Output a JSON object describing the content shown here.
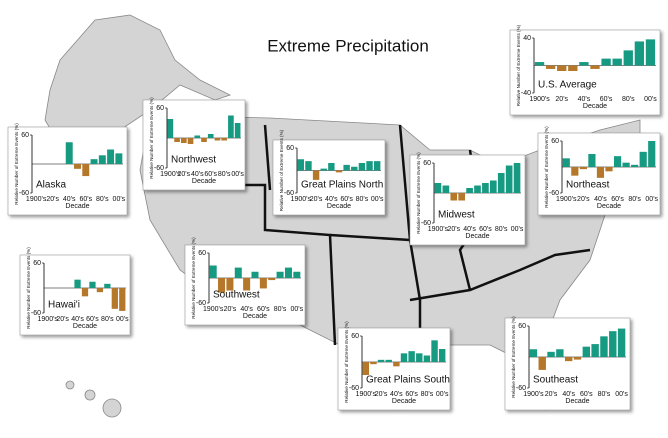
{
  "title": "Extreme Precipitation",
  "chart_data": [
    {
      "type": "bar",
      "title": "U.S. Average",
      "y_label": "Relative Number of Extreme Events (%)",
      "x_label": "Decade",
      "categories": [
        "1900's",
        null,
        "20's",
        null,
        "40's",
        null,
        "60's",
        null,
        "80's",
        null,
        "00's"
      ],
      "values": [
        5,
        -5,
        -8,
        -8,
        5,
        -5,
        10,
        10,
        22,
        35,
        38
      ],
      "ylim": [
        -40,
        40
      ],
      "yticks": [
        -40,
        40
      ],
      "color": "#179a82",
      "negative_color": "#b5772a"
    },
    {
      "type": "bar",
      "title": "Northwest",
      "y_label": "Relative Number of Extreme Events (%)",
      "x_label": "Decade",
      "categories": [
        "1900's",
        null,
        "20's",
        null,
        "40's",
        null,
        "60's",
        null,
        "80's",
        null,
        "00's"
      ],
      "values": [
        38,
        -8,
        -10,
        -12,
        5,
        -8,
        8,
        -5,
        -5,
        45,
        30
      ],
      "ylim": [
        -60,
        60
      ],
      "yticks": [
        -60,
        60
      ],
      "color": "#179a82",
      "negative_color": "#b5772a"
    },
    {
      "type": "bar",
      "title": "Alaska",
      "y_label": "Relative Number of Extreme Events (%)",
      "x_label": "Decade",
      "categories": [
        "1900's",
        null,
        "20's",
        null,
        "40's",
        null,
        "60's",
        null,
        "80's",
        null,
        "00's"
      ],
      "values": [
        null,
        null,
        null,
        null,
        45,
        -10,
        -25,
        10,
        18,
        30,
        22
      ],
      "ylim": [
        -60,
        60
      ],
      "yticks": [
        -60,
        60
      ],
      "color": "#179a82",
      "negative_color": "#b5772a"
    },
    {
      "type": "bar",
      "title": "Great Plains North",
      "y_label": "Relative Number of Extreme Events (%)",
      "x_label": "Decade",
      "categories": [
        "1900's",
        null,
        "20's",
        null,
        "40's",
        null,
        "60's",
        null,
        "80's",
        null,
        "00's"
      ],
      "values": [
        30,
        25,
        -25,
        5,
        20,
        -5,
        15,
        10,
        20,
        25,
        25
      ],
      "ylim": [
        -60,
        60
      ],
      "yticks": [
        -60,
        60
      ],
      "color": "#179a82",
      "negative_color": "#b5772a"
    },
    {
      "type": "bar",
      "title": "Midwest",
      "y_label": "Relative Number of Extreme Events (%)",
      "x_label": "Decade",
      "categories": [
        "1900's",
        null,
        "20's",
        null,
        "40's",
        null,
        "60's",
        null,
        "80's",
        null,
        "00's"
      ],
      "values": [
        20,
        15,
        -15,
        -15,
        10,
        15,
        20,
        25,
        40,
        55,
        60
      ],
      "ylim": [
        -60,
        60
      ],
      "yticks": [
        -60,
        60
      ],
      "color": "#179a82",
      "negative_color": "#b5772a"
    },
    {
      "type": "bar",
      "title": "Northeast",
      "y_label": "Relative Number of Extreme Events (%)",
      "x_label": "Decade",
      "categories": [
        "1900's",
        null,
        "20's",
        null,
        "40's",
        null,
        "60's",
        null,
        "80's",
        null,
        "00's"
      ],
      "values": [
        20,
        -20,
        -5,
        30,
        -25,
        -10,
        25,
        10,
        5,
        35,
        60
      ],
      "ylim": [
        -60,
        60
      ],
      "yticks": [
        -60,
        60
      ],
      "color": "#179a82",
      "negative_color": "#b5772a"
    },
    {
      "type": "bar",
      "title": "Hawai'i",
      "y_label": "Relative Number of Extreme Events (%)",
      "x_label": "Decade",
      "categories": [
        "1900's",
        null,
        "20's",
        null,
        "40's",
        null,
        "60's",
        null,
        "80's",
        null,
        "00's"
      ],
      "values": [
        null,
        null,
        null,
        null,
        20,
        -20,
        15,
        -10,
        10,
        -50,
        -55
      ],
      "ylim": [
        -60,
        60
      ],
      "yticks": [
        -60,
        60
      ],
      "color": "#179a82",
      "negative_color": "#b5772a"
    },
    {
      "type": "bar",
      "title": "Southwest",
      "y_label": "Relative Number of Extreme Events (%)",
      "x_label": "Decade",
      "categories": [
        "1900's",
        null,
        "20's",
        null,
        "40's",
        null,
        "60's",
        null,
        "80's",
        null,
        "00's"
      ],
      "values": [
        30,
        -35,
        -30,
        25,
        -30,
        15,
        -25,
        -5,
        15,
        25,
        15
      ],
      "ylim": [
        -60,
        60
      ],
      "yticks": [
        -60,
        60
      ],
      "color": "#179a82",
      "negative_color": "#b5772a"
    },
    {
      "type": "bar",
      "title": "Great Plains South",
      "y_label": "Relative Number of Extreme Events (%)",
      "x_label": "Decade",
      "categories": [
        "1900's",
        null,
        "20's",
        null,
        "40's",
        null,
        "60's",
        null,
        "80's",
        null,
        "00's"
      ],
      "values": [
        -30,
        -5,
        5,
        5,
        -10,
        20,
        25,
        20,
        15,
        50,
        30
      ],
      "ylim": [
        -60,
        60
      ],
      "yticks": [
        -60,
        60
      ],
      "color": "#179a82",
      "negative_color": "#b5772a"
    },
    {
      "type": "bar",
      "title": "Southeast",
      "y_label": "Relative Number of Extreme Events (%)",
      "x_label": "Decade",
      "categories": [
        "1900's",
        null,
        "20's",
        null,
        "40's",
        null,
        "60's",
        null,
        "80's",
        null,
        "00's"
      ],
      "values": [
        15,
        -25,
        10,
        15,
        -8,
        -5,
        20,
        25,
        40,
        50,
        55
      ],
      "ylim": [
        -60,
        60
      ],
      "yticks": [
        -60,
        60
      ],
      "color": "#179a82",
      "negative_color": "#b5772a"
    }
  ]
}
